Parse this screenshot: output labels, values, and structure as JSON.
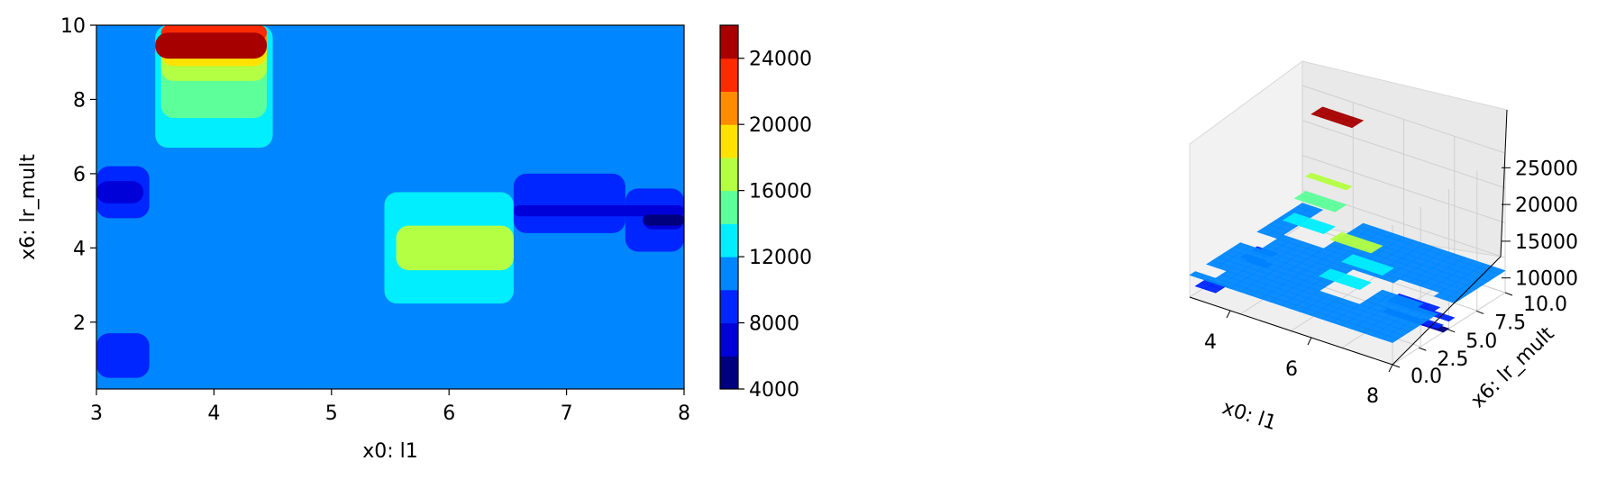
{
  "chart_data": [
    {
      "type": "contour",
      "xlabel": "x0: l1",
      "ylabel": "x6: lr_mult",
      "xlim": [
        3,
        8
      ],
      "ylim": [
        0.2,
        10
      ],
      "xticks": [
        "3",
        "4",
        "5",
        "6",
        "7",
        "8"
      ],
      "yticks": [
        "2",
        "4",
        "6",
        "8",
        "10"
      ],
      "colormap": "jet",
      "levels": [
        4000,
        6000,
        8000,
        10000,
        12000,
        14000,
        16000,
        18000,
        20000,
        22000,
        24000,
        26000
      ],
      "level_colors": [
        "#00007f",
        "#0000d9",
        "#0026ff",
        "#0087ff",
        "#00eeff",
        "#5dff9a",
        "#b4ff43",
        "#ffe200",
        "#ff8c00",
        "#ff2b00",
        "#a60000"
      ],
      "colorbar_ticks": [
        "4000",
        "8000",
        "12000",
        "16000",
        "20000",
        "24000"
      ],
      "background_level": 3,
      "regions": [
        {
          "x": [
            3.5,
            4.5
          ],
          "y": [
            6.7,
            10.0
          ],
          "level": 4
        },
        {
          "x": [
            3.55,
            4.45
          ],
          "y": [
            7.5,
            10.0
          ],
          "level": 5
        },
        {
          "x": [
            3.55,
            4.45
          ],
          "y": [
            8.5,
            10.0
          ],
          "level": 6
        },
        {
          "x": [
            3.55,
            4.45
          ],
          "y": [
            8.9,
            10.0
          ],
          "level": 7
        },
        {
          "x": [
            3.55,
            4.45
          ],
          "y": [
            9.2,
            10.0
          ],
          "level": 8
        },
        {
          "x": [
            3.55,
            4.45
          ],
          "y": [
            9.6,
            10.0
          ],
          "level": 9
        },
        {
          "x": [
            3.5,
            4.45
          ],
          "y": [
            9.1,
            9.8
          ],
          "level": 10
        },
        {
          "x": [
            5.45,
            6.55
          ],
          "y": [
            2.5,
            5.5
          ],
          "level": 4
        },
        {
          "x": [
            5.55,
            6.55
          ],
          "y": [
            3.4,
            4.6
          ],
          "level": 6
        },
        {
          "x": [
            3.0,
            3.45
          ],
          "y": [
            4.8,
            6.2
          ],
          "level": 2
        },
        {
          "x": [
            3.0,
            3.4
          ],
          "y": [
            5.2,
            5.8
          ],
          "level": 1
        },
        {
          "x": [
            3.0,
            3.45
          ],
          "y": [
            0.5,
            1.7
          ],
          "level": 2
        },
        {
          "x": [
            6.55,
            7.5
          ],
          "y": [
            4.4,
            6.0
          ],
          "level": 2
        },
        {
          "x": [
            7.5,
            8.0
          ],
          "y": [
            3.9,
            5.6
          ],
          "level": 2
        },
        {
          "x": [
            6.55,
            8.0
          ],
          "y": [
            4.85,
            5.15
          ],
          "level": 1
        },
        {
          "x": [
            7.65,
            8.0
          ],
          "y": [
            4.5,
            5.0
          ],
          "level": 1
        },
        {
          "x": [
            7.65,
            8.0
          ],
          "y": [
            4.6,
            4.9
          ],
          "level": 0
        }
      ]
    },
    {
      "type": "surface3d",
      "xlabel": "x0: l1",
      "ylabel": "x6: lr_mult",
      "xticks": [
        "4",
        "6",
        "8"
      ],
      "yticks": [
        "0.0",
        "2.5",
        "5.0",
        "7.5",
        "10.0"
      ],
      "zticks": [
        "10000",
        "15000",
        "20000",
        "25000"
      ],
      "zlim": [
        8000,
        27000
      ],
      "colormap": "jet",
      "grid": true
    }
  ]
}
